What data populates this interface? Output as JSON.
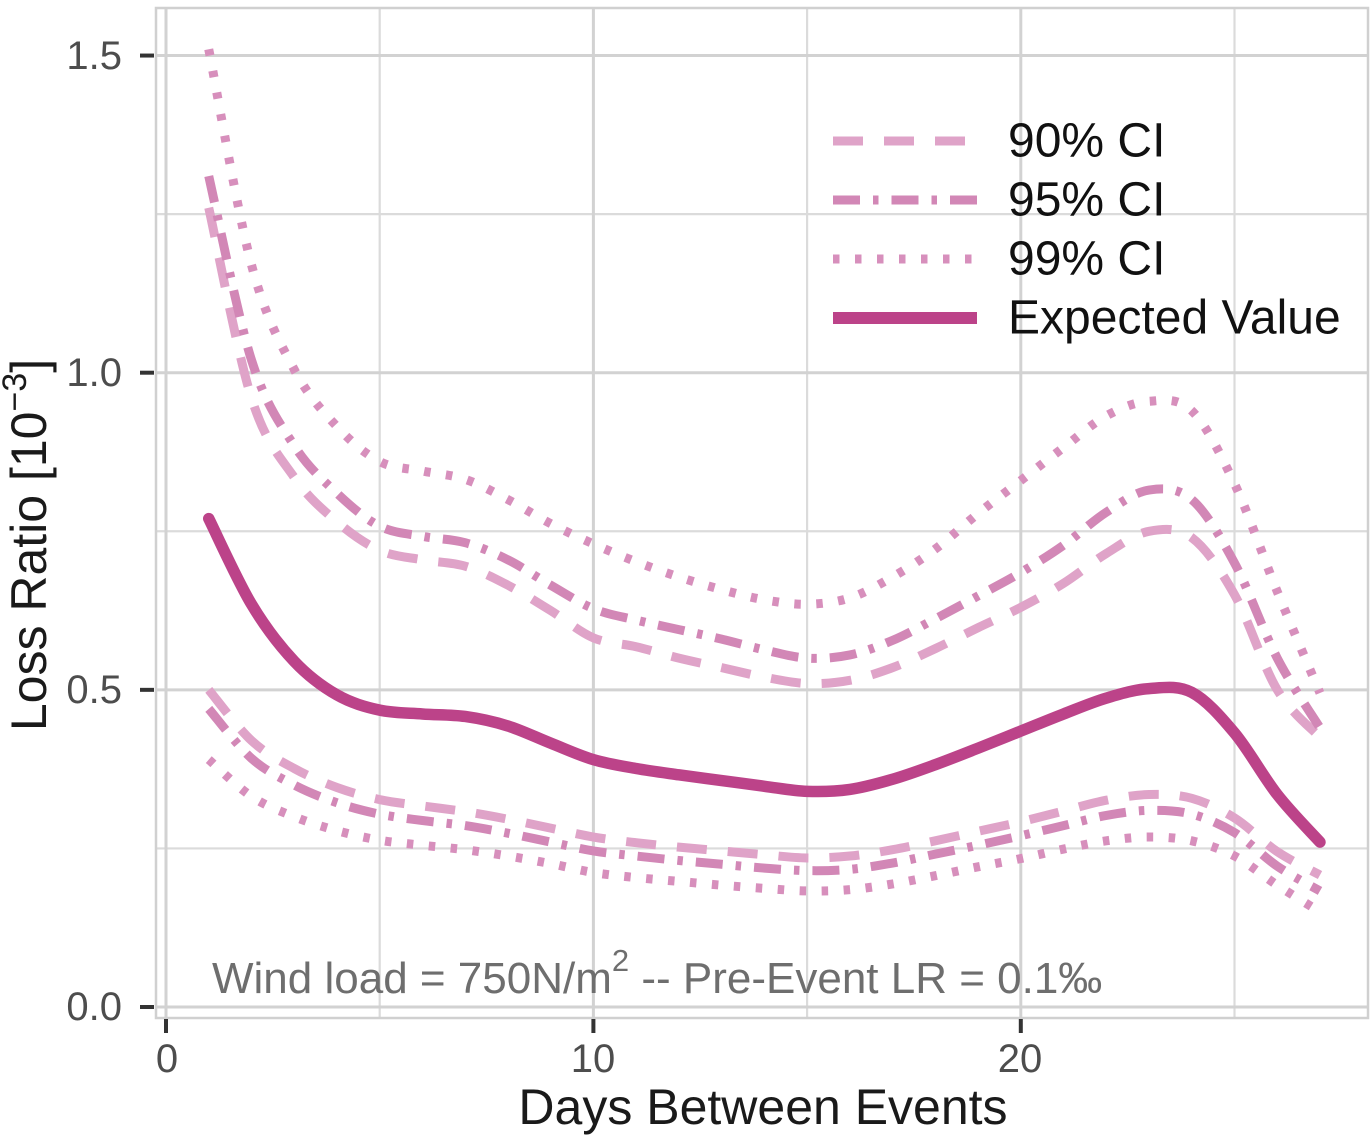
{
  "chart_data": {
    "type": "line",
    "x_label": "Days Between Events",
    "y_label": "Loss Ratio [10^-3]",
    "x": [
      1,
      2,
      3,
      4,
      5,
      6,
      7,
      8,
      9,
      10,
      11,
      12,
      13,
      14,
      15,
      16,
      17,
      18,
      19,
      20,
      21,
      22,
      23,
      24,
      25,
      26,
      27
    ],
    "x_axis": {
      "ticks": [
        0,
        10,
        20
      ],
      "tick_labels": [
        "0",
        "10",
        "20"
      ],
      "minor_ticks": [
        5,
        15,
        25
      ],
      "range": [
        -0.3,
        28.2
      ]
    },
    "y_axis": {
      "ticks": [
        0,
        0.5,
        1.0,
        1.5
      ],
      "tick_labels": [
        "0.0",
        "0.5",
        "1.0",
        "1.5"
      ],
      "minor_ticks": [
        0.25,
        0.75,
        1.25
      ],
      "range": [
        -0.02,
        1.59
      ]
    },
    "grid": true,
    "legend_position": "top-right-inside",
    "series": [
      {
        "name": "90% CI",
        "linetype": "dashed",
        "color": "#dfa3c8",
        "upper": [
          1.26,
          0.96,
          0.835,
          0.765,
          0.72,
          0.705,
          0.695,
          0.665,
          0.625,
          0.582,
          0.568,
          0.55,
          0.535,
          0.52,
          0.51,
          0.515,
          0.535,
          0.565,
          0.598,
          0.63,
          0.668,
          0.715,
          0.75,
          0.74,
          0.65,
          0.5,
          0.425
        ],
        "lower": [
          0.5,
          0.42,
          0.376,
          0.346,
          0.327,
          0.317,
          0.308,
          0.296,
          0.282,
          0.268,
          0.259,
          0.252,
          0.246,
          0.24,
          0.235,
          0.238,
          0.248,
          0.262,
          0.277,
          0.292,
          0.309,
          0.326,
          0.335,
          0.329,
          0.298,
          0.245,
          0.208
        ]
      },
      {
        "name": "95% CI",
        "linetype": "dashdot",
        "color": "#d287b6",
        "upper": [
          1.31,
          1.02,
          0.885,
          0.81,
          0.758,
          0.742,
          0.732,
          0.705,
          0.665,
          0.628,
          0.61,
          0.595,
          0.58,
          0.563,
          0.55,
          0.555,
          0.578,
          0.612,
          0.648,
          0.685,
          0.728,
          0.78,
          0.815,
          0.8,
          0.7,
          0.55,
          0.44
        ],
        "lower": [
          0.47,
          0.392,
          0.35,
          0.322,
          0.304,
          0.294,
          0.286,
          0.274,
          0.26,
          0.246,
          0.238,
          0.231,
          0.225,
          0.219,
          0.215,
          0.217,
          0.227,
          0.241,
          0.255,
          0.27,
          0.286,
          0.302,
          0.31,
          0.304,
          0.275,
          0.222,
          0.183
        ]
      },
      {
        "name": "99% CI",
        "linetype": "dotted",
        "color": "#d78fbc",
        "upper": [
          1.51,
          1.17,
          1.005,
          0.915,
          0.86,
          0.845,
          0.832,
          0.8,
          0.762,
          0.73,
          0.702,
          0.678,
          0.658,
          0.642,
          0.635,
          0.645,
          0.678,
          0.722,
          0.778,
          0.83,
          0.882,
          0.932,
          0.955,
          0.94,
          0.825,
          0.655,
          0.495
        ],
        "lower": [
          0.39,
          0.332,
          0.3,
          0.278,
          0.263,
          0.255,
          0.248,
          0.238,
          0.226,
          0.212,
          0.204,
          0.198,
          0.192,
          0.187,
          0.183,
          0.185,
          0.194,
          0.207,
          0.221,
          0.234,
          0.249,
          0.262,
          0.268,
          0.262,
          0.238,
          0.192,
          0.15
        ]
      },
      {
        "name": "Expected Value",
        "linetype": "solid",
        "color": "#bc4389",
        "values": [
          0.77,
          0.635,
          0.545,
          0.492,
          0.468,
          0.462,
          0.458,
          0.443,
          0.416,
          0.39,
          0.376,
          0.366,
          0.357,
          0.348,
          0.34,
          0.343,
          0.359,
          0.382,
          0.408,
          0.435,
          0.462,
          0.487,
          0.502,
          0.496,
          0.432,
          0.335,
          0.26
        ]
      }
    ],
    "annotation": "Wind load = 750N/m2  --  Pre-Event LR = 0.1‰"
  },
  "axes": {
    "x": {
      "title": "Days Between Events",
      "tick_labels": [
        "0",
        "10",
        "20"
      ]
    },
    "y": {
      "title_base": "Loss Ratio [10",
      "title_sup": "−3",
      "title_end": "]",
      "tick_labels": [
        "0.0",
        "0.5",
        "1.0",
        "1.5"
      ]
    }
  },
  "legend": {
    "labels": [
      "90% CI",
      "95% CI",
      "99% CI",
      "Expected Value"
    ]
  },
  "annotation": {
    "part1": "Wind load = 750N/m",
    "sup": "2",
    "part2": "  --  Pre-Event LR = 0.1‰"
  },
  "colors": {
    "expected_value": "#bc4389",
    "ci_90": "#dfa3c8",
    "ci_95": "#d287b6",
    "ci_99": "#d78fbc",
    "grid_major": "#d2d2d2",
    "grid_minor": "#dbdbdb",
    "tick_mark": "#333333"
  }
}
